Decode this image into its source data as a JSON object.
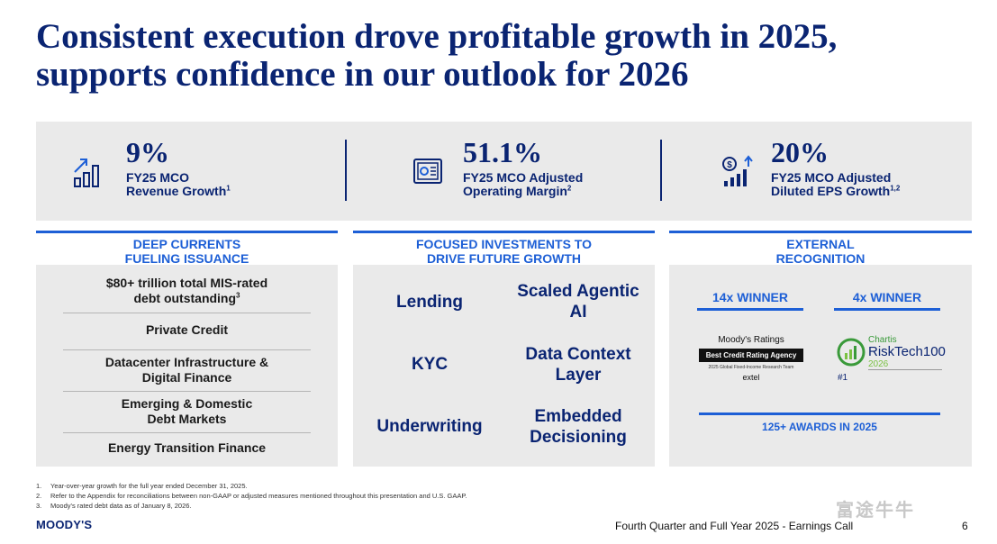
{
  "title": {
    "line1": "Consistent execution drove profitable growth in 2025,",
    "line2": "supports confidence in our outlook for 2026"
  },
  "kpis": [
    {
      "value": "9%",
      "line1": "FY25 MCO",
      "line2": "Revenue Growth",
      "note": "1",
      "icon": "growth-chart-icon"
    },
    {
      "value": "51.1%",
      "line1": "FY25 MCO Adjusted",
      "line2": "Operating Margin",
      "note": "2",
      "icon": "margin-report-icon"
    },
    {
      "value": "20%",
      "line1": "FY25 MCO Adjusted",
      "line2": "Diluted EPS Growth",
      "note": "1,2",
      "icon": "dollar-growth-icon"
    }
  ],
  "columns": {
    "deep": {
      "line1": "DEEP CURRENTS",
      "line2": "FUELING ISSUANCE",
      "items": [
        {
          "line1": "$80+ trillion total MIS-rated",
          "line2": "debt outstanding",
          "note": "3"
        },
        {
          "line1": "Private Credit",
          "line2": ""
        },
        {
          "line1": "Datacenter Infrastructure &",
          "line2": "Digital Finance"
        },
        {
          "line1": "Emerging & Domestic",
          "line2": "Debt Markets"
        },
        {
          "line1": "Energy Transition Finance",
          "line2": ""
        }
      ]
    },
    "focused": {
      "line1": "FOCUSED INVESTMENTS TO",
      "line2": "DRIVE FUTURE GROWTH",
      "grid": [
        {
          "line1": "Lending",
          "line2": ""
        },
        {
          "line1": "Scaled Agentic",
          "line2": "AI"
        },
        {
          "line1": "KYC",
          "line2": ""
        },
        {
          "line1": "Data Context",
          "line2": "Layer"
        },
        {
          "line1": "Underwriting",
          "line2": ""
        },
        {
          "line1": "Embedded",
          "line2": "Decisioning"
        }
      ]
    },
    "external": {
      "line1": "EXTERNAL",
      "line2": "RECOGNITION",
      "winner_left": "14x WINNER",
      "winner_right": "4x WINNER",
      "moodys_logo": {
        "name": "Moody's Ratings",
        "badge": "Best Credit Rating Agency",
        "sub": "2025 Global Fixed-Income Research Team",
        "sponsor": "extel"
      },
      "chartis_logo": {
        "brand": "Chartis",
        "name": "RiskTech100",
        "year": "2026",
        "rank": "#1"
      },
      "awards": "125+ AWARDS IN 2025"
    }
  },
  "footnotes": [
    {
      "num": "1.",
      "text": "Year-over-year growth for the full year ended December 31, 2025."
    },
    {
      "num": "2.",
      "text": "Refer to the Appendix for reconciliations between non-GAAP or adjusted measures mentioned throughout this presentation and U.S. GAAP."
    },
    {
      "num": "3.",
      "text": "Moody's rated debt data as of January 8, 2026."
    }
  ],
  "footer": {
    "brand": "MOODY'S",
    "text": "Fourth Quarter and Full Year 2025 - Earnings Call",
    "page": "6",
    "watermark": "富途牛牛"
  },
  "colors": {
    "navy": "#0a2472",
    "blue": "#1d5fd6",
    "panel": "#eaeaea"
  }
}
